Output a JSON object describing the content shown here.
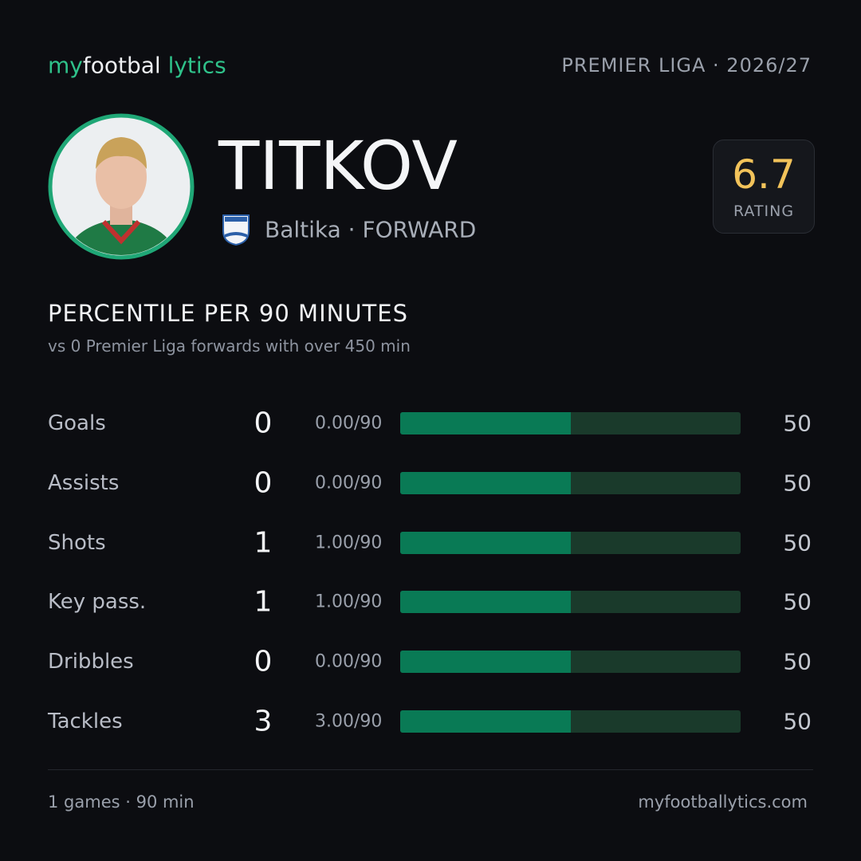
{
  "header": {
    "brand": [
      "my",
      "footbal",
      "lytics"
    ],
    "league": "PREMIER LIGA · 2026/27"
  },
  "player": {
    "name": "TITKOV",
    "club_line": "Baltika · FORWARD",
    "rating": 6.7,
    "rating_label": "RATING"
  },
  "section": {
    "title": "PERCENTILE PER 90 MINUTES",
    "subtitle": "vs 0 Premier Liga forwards with over 450 min"
  },
  "stats": {
    "percentile_range": [
      0,
      100
    ],
    "rows": [
      {
        "label": "Goals",
        "total": 0,
        "per90": "0.00/90",
        "percentile": 50
      },
      {
        "label": "Assists",
        "total": 0,
        "per90": "0.00/90",
        "percentile": 50
      },
      {
        "label": "Shots",
        "total": 1,
        "per90": "1.00/90",
        "percentile": 50
      },
      {
        "label": "Key pass.",
        "total": 1,
        "per90": "1.00/90",
        "percentile": 50
      },
      {
        "label": "Dribbles",
        "total": 0,
        "per90": "0.00/90",
        "percentile": 50
      },
      {
        "label": "Tackles",
        "total": 3,
        "per90": "3.00/90",
        "percentile": 50
      }
    ]
  },
  "footer": {
    "summary": "1 games · 90 min",
    "site": "myfootballytics.com"
  }
}
